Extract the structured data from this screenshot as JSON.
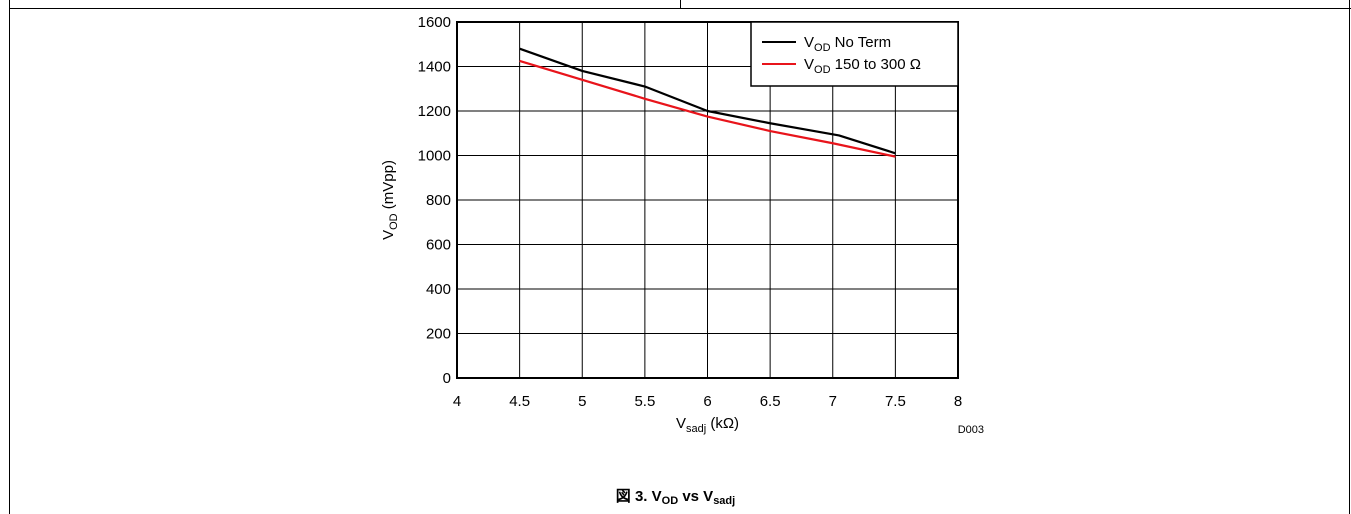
{
  "chart_data": {
    "type": "line",
    "ylabel_main": "V",
    "ylabel_sub": "OD",
    "ylabel_rest": " (mVpp)",
    "xlabel_main": "V",
    "xlabel_sub": "sadj",
    "xlabel_rest": " (kΩ)",
    "xlim": [
      4,
      8
    ],
    "ylim": [
      0,
      1600
    ],
    "x_ticks": [
      "4",
      "4.5",
      "5",
      "5.5",
      "6",
      "6.5",
      "7",
      "7.5",
      "8"
    ],
    "y_ticks": [
      "0",
      "200",
      "400",
      "600",
      "800",
      "1000",
      "1200",
      "1400",
      "1600"
    ],
    "grid": true,
    "legend_position": "top-right",
    "series": [
      {
        "name_main": "V",
        "name_sub": "OD",
        "name_rest": " No Term",
        "color": "#000000",
        "points": [
          [
            4.5,
            1480
          ],
          [
            5.0,
            1380
          ],
          [
            5.5,
            1310
          ],
          [
            6.0,
            1200
          ],
          [
            6.5,
            1145
          ],
          [
            7.05,
            1090
          ],
          [
            7.5,
            1010
          ]
        ]
      },
      {
        "name_main": "V",
        "name_sub": "OD",
        "name_rest": " 150 to 300 Ω",
        "color": "#e8141b",
        "points": [
          [
            4.5,
            1425
          ],
          [
            5.0,
            1340
          ],
          [
            5.5,
            1255
          ],
          [
            6.0,
            1175
          ],
          [
            6.5,
            1110
          ],
          [
            7.0,
            1055
          ],
          [
            7.5,
            995
          ]
        ]
      }
    ],
    "watermark": "D003"
  },
  "caption": {
    "prefix": "図 3. V",
    "sub1": "OD",
    "mid": " vs V",
    "sub2": "sadj"
  }
}
